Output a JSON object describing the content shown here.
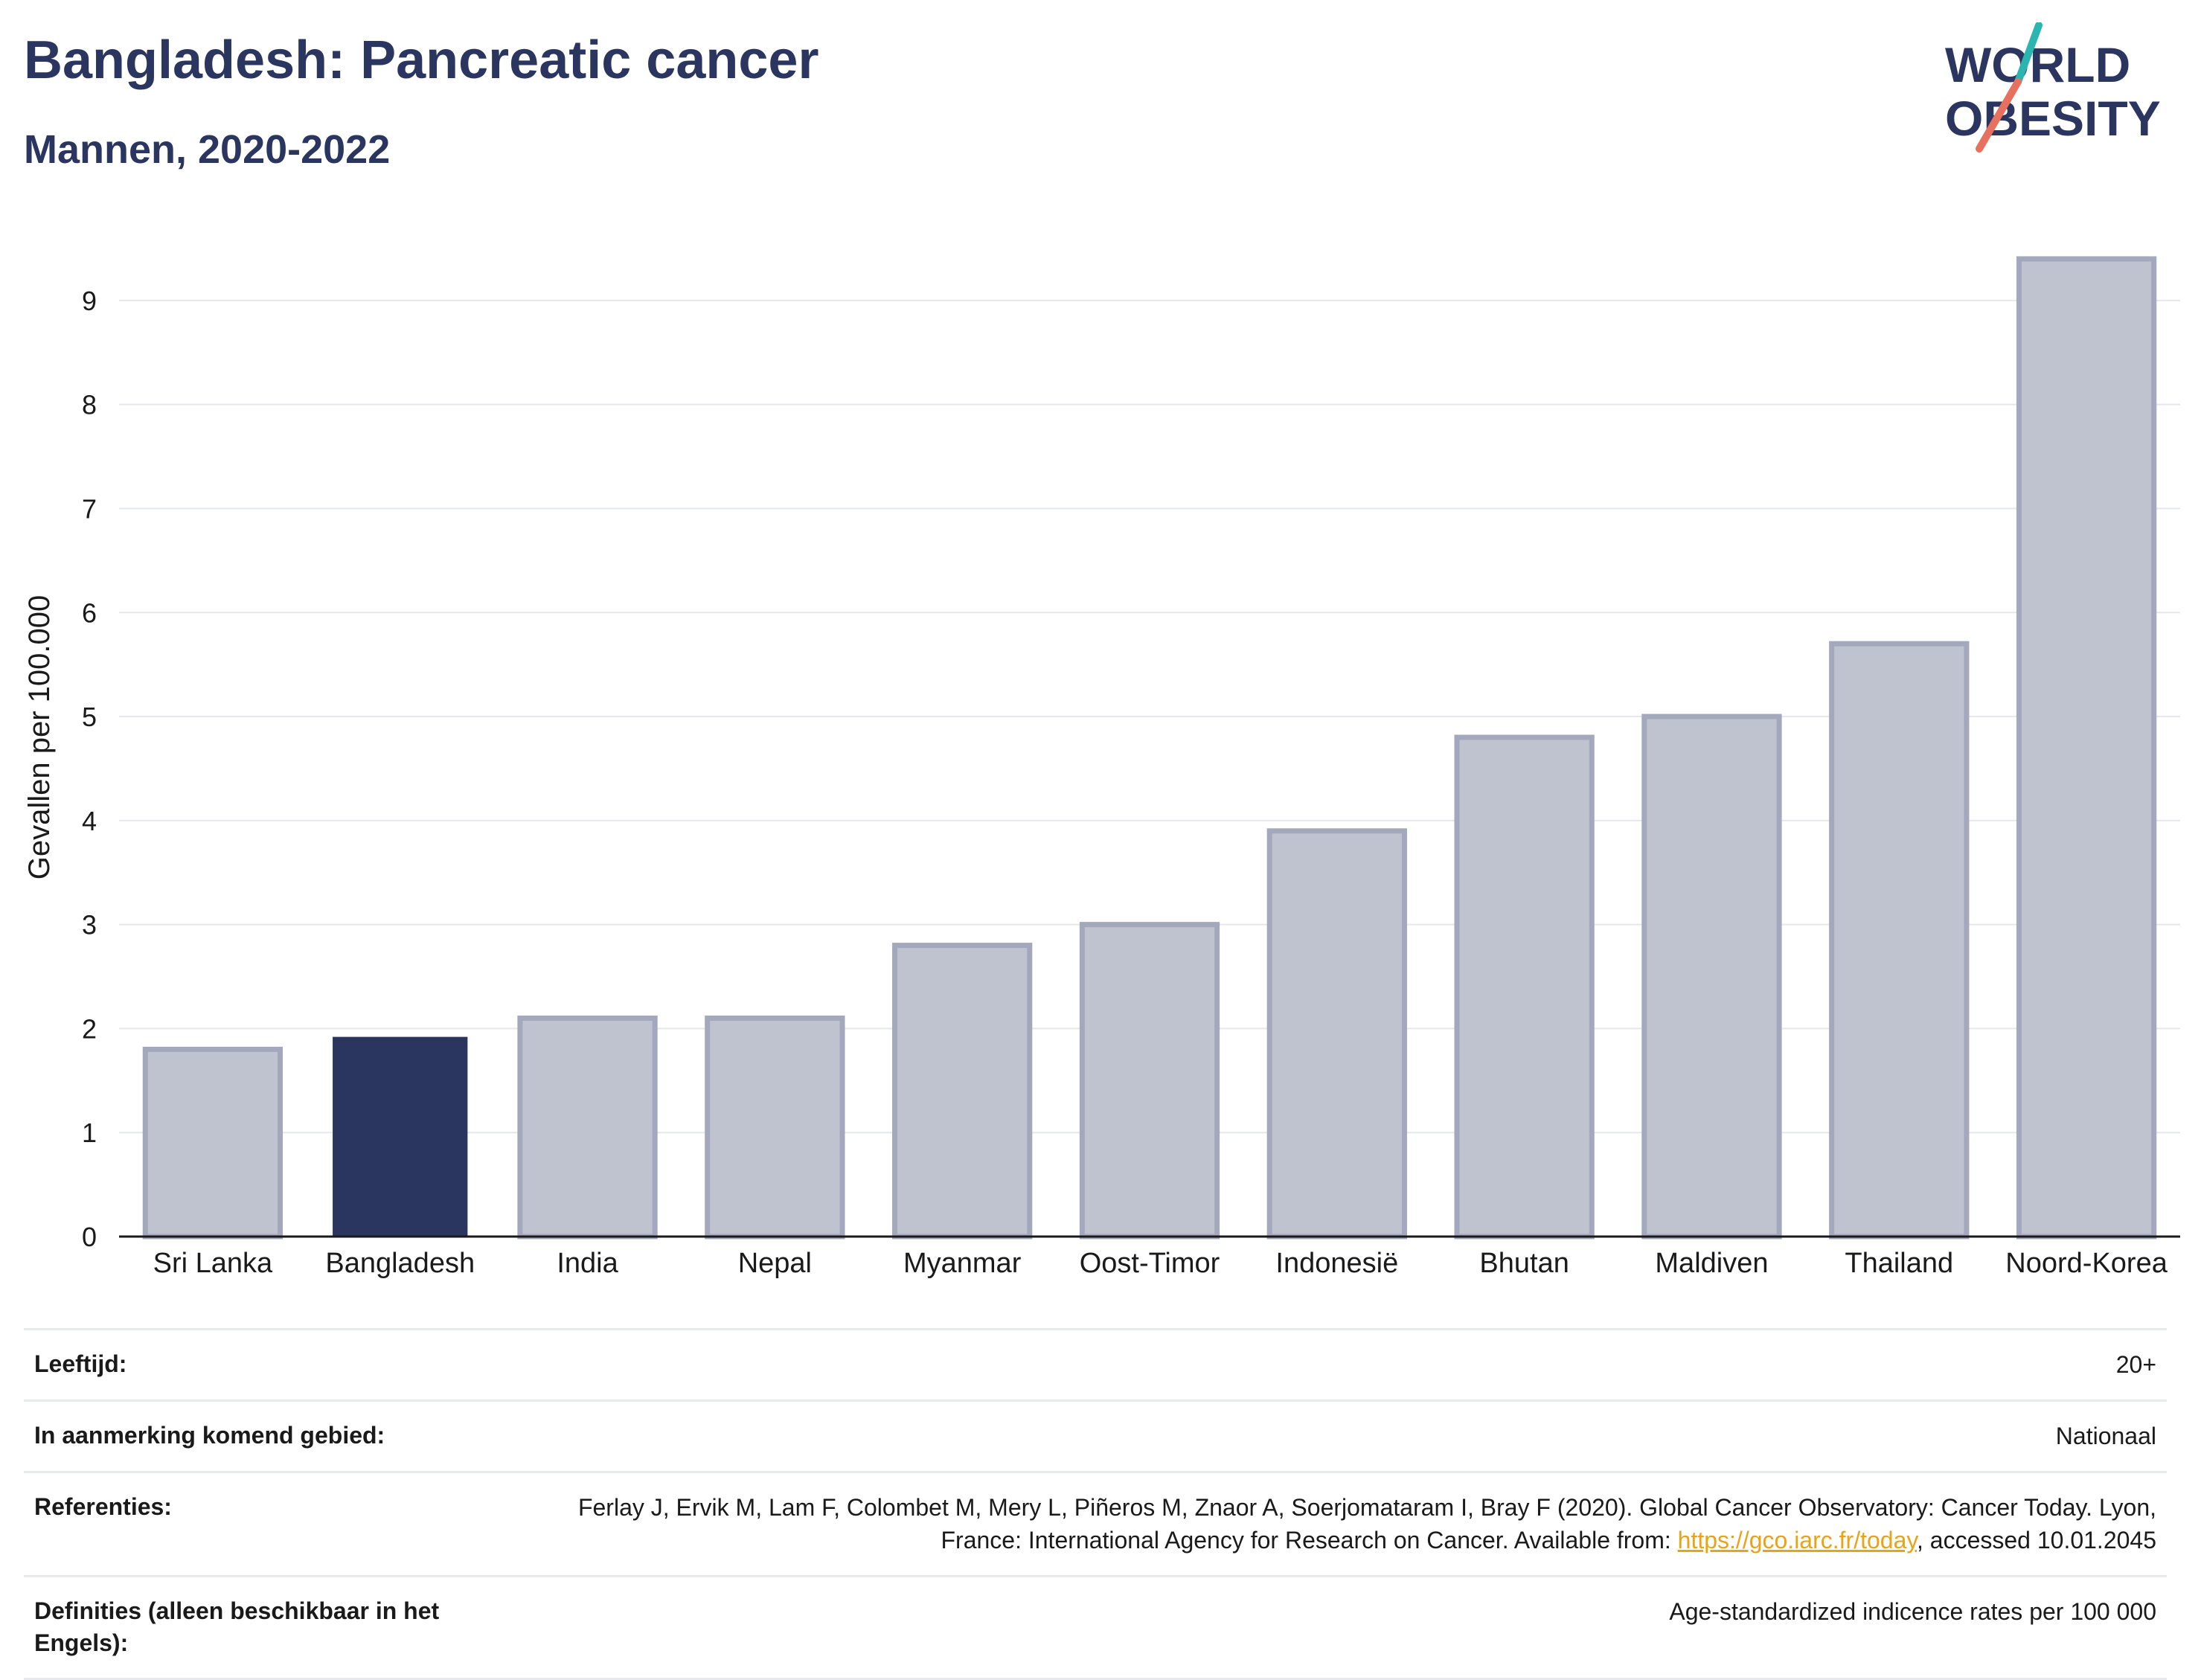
{
  "header": {
    "title": "Bangladesh: Pancreatic cancer",
    "subtitle": "Mannen, 2020-2022",
    "logo_line1": "WORLD",
    "logo_line2": "OBESITY"
  },
  "colors": {
    "highlight": "#2b3660",
    "bar_fill": "#bfc2cf",
    "bar_stroke": "#a3a8bc",
    "title": "#2b3660",
    "link": "#e8a317",
    "logo_teal": "#2bb5b0",
    "logo_coral": "#e8705f"
  },
  "chart_data": {
    "type": "bar",
    "title": "Bangladesh: Pancreatic cancer",
    "subtitle": "Mannen, 2020-2022",
    "ylabel": "Gevallen per 100.000",
    "xlabel": "",
    "ylim": [
      0,
      9.6
    ],
    "yticks": [
      0,
      1,
      2,
      3,
      4,
      5,
      6,
      7,
      8,
      9
    ],
    "grid": true,
    "highlighted_category": "Bangladesh",
    "categories": [
      "Sri Lanka",
      "Bangladesh",
      "India",
      "Nepal",
      "Myanmar",
      "Oost-Timor",
      "Indonesië",
      "Bhutan",
      "Maldiven",
      "Thailand",
      "Noord-Korea"
    ],
    "values": [
      1.8,
      1.92,
      2.1,
      2.1,
      2.8,
      3.0,
      3.9,
      4.8,
      5.0,
      5.7,
      9.4
    ]
  },
  "info": {
    "rows": [
      {
        "label": "Leeftijd:",
        "value": "20+"
      },
      {
        "label": "In aanmerking komend gebied:",
        "value": "Nationaal"
      },
      {
        "label": "Referenties:",
        "value_pre": "Ferlay J, Ervik M, Lam F, Colombet M, Mery L, Piñeros M, Znaor A, Soerjomataram I, Bray F (2020). Global Cancer Observatory: Cancer Today. Lyon, France: International Agency for Research on Cancer. Available from: ",
        "link": "https://gco.iarc.fr/today",
        "value_post": ", accessed 10.01.2045"
      },
      {
        "label": "Definities (alleen beschikbaar in het Engels):",
        "value": "Age-standardized indicence rates per 100 000"
      }
    ]
  }
}
